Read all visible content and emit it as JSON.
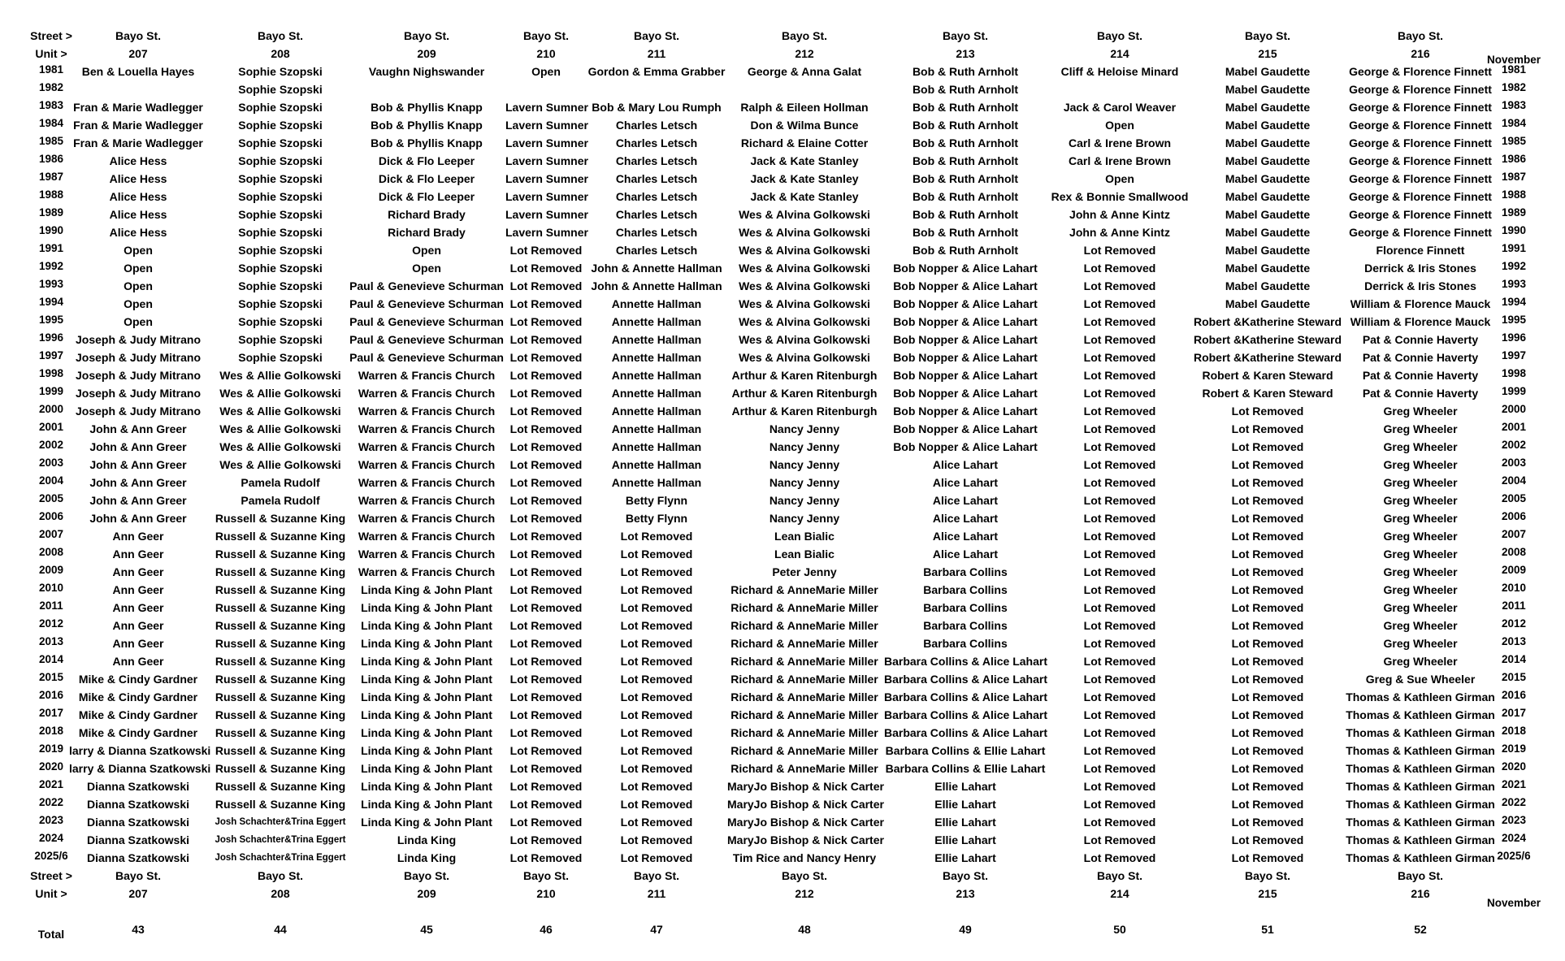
{
  "header": {
    "street_label": "Street >",
    "unit_label": "Unit >",
    "month_label": "November",
    "streets": [
      "Bayo St.",
      "Bayo St.",
      "Bayo St.",
      "Bayo St.",
      "Bayo St.",
      "Bayo St.",
      "Bayo St.",
      "Bayo St.",
      "Bayo St.",
      "Bayo St."
    ],
    "units": [
      "207",
      "208",
      "209",
      "210",
      "211",
      "212",
      "213",
      "214",
      "215",
      "216"
    ]
  },
  "rows": [
    {
      "year": "1981",
      "cells": [
        "Ben & Louella Hayes",
        "Sophie Szopski",
        "Vaughn Nighswander",
        "Open",
        "Gordon & Emma Grabber",
        "George & Anna Galat",
        "Bob & Ruth Arnholt",
        "Cliff & Heloise Minard",
        "Mabel Gaudette",
        "George & Florence Finnett"
      ]
    },
    {
      "year": "1982",
      "cells": [
        "",
        "Sophie Szopski",
        "",
        "",
        "",
        "",
        "Bob & Ruth Arnholt",
        "",
        "Mabel Gaudette",
        "George & Florence Finnett"
      ]
    },
    {
      "year": "1983",
      "cells": [
        "Fran & Marie Wadlegger",
        "Sophie Szopski",
        "Bob & Phyllis Knapp",
        "Lavern Sumner",
        "Bob & Mary Lou Rumph",
        "Ralph & Eileen Hollman",
        "Bob & Ruth Arnholt",
        "Jack & Carol Weaver",
        "Mabel Gaudette",
        "George & Florence Finnett"
      ]
    },
    {
      "year": "1984",
      "cells": [
        "Fran & Marie Wadlegger",
        "Sophie Szopski",
        "Bob & Phyllis Knapp",
        "Lavern Sumner",
        "Charles Letsch",
        "Don & Wilma Bunce",
        "Bob & Ruth Arnholt",
        "Open",
        "Mabel Gaudette",
        "George & Florence Finnett"
      ]
    },
    {
      "year": "1985",
      "cells": [
        "Fran & Marie Wadlegger",
        "Sophie Szopski",
        "Bob & Phyllis Knapp",
        "Lavern Sumner",
        "Charles Letsch",
        "Richard & Elaine Cotter",
        "Bob & Ruth Arnholt",
        "Carl & Irene Brown",
        "Mabel Gaudette",
        "George & Florence Finnett"
      ]
    },
    {
      "year": "1986",
      "cells": [
        "Alice Hess",
        "Sophie Szopski",
        "Dick & Flo Leeper",
        "Lavern Sumner",
        "Charles Letsch",
        "Jack & Kate Stanley",
        "Bob & Ruth Arnholt",
        "Carl & Irene Brown",
        "Mabel Gaudette",
        "George & Florence Finnett"
      ]
    },
    {
      "year": "1987",
      "cells": [
        "Alice Hess",
        "Sophie Szopski",
        "Dick & Flo Leeper",
        "Lavern Sumner",
        "Charles Letsch",
        "Jack & Kate Stanley",
        "Bob & Ruth Arnholt",
        "Open",
        "Mabel Gaudette",
        "George & Florence Finnett"
      ]
    },
    {
      "year": "1988",
      "cells": [
        "Alice Hess",
        "Sophie Szopski",
        "Dick & Flo Leeper",
        "Lavern Sumner",
        "Charles Letsch",
        "Jack & Kate Stanley",
        "Bob & Ruth Arnholt",
        "Rex & Bonnie Smallwood",
        "Mabel Gaudette",
        "George & Florence Finnett"
      ]
    },
    {
      "year": "1989",
      "cells": [
        "Alice Hess",
        "Sophie Szopski",
        "Richard Brady",
        "Lavern Sumner",
        "Charles Letsch",
        "Wes & Alvina Golkowski",
        "Bob & Ruth Arnholt",
        "John & Anne Kintz",
        "Mabel Gaudette",
        "George & Florence Finnett"
      ]
    },
    {
      "year": "1990",
      "cells": [
        "Alice Hess",
        "Sophie Szopski",
        "Richard Brady",
        "Lavern Sumner",
        "Charles Letsch",
        "Wes & Alvina Golkowski",
        "Bob & Ruth Arnholt",
        "John & Anne Kintz",
        "Mabel Gaudette",
        "George & Florence Finnett"
      ]
    },
    {
      "year": "1991",
      "cells": [
        "Open",
        "Sophie Szopski",
        "Open",
        "Lot Removed",
        "Charles Letsch",
        "Wes & Alvina Golkowski",
        "Bob & Ruth Arnholt",
        "Lot Removed",
        "Mabel Gaudette",
        "Florence Finnett"
      ]
    },
    {
      "year": "1992",
      "cells": [
        "Open",
        "Sophie Szopski",
        "Open",
        "Lot Removed",
        "John & Annette Hallman",
        "Wes & Alvina Golkowski",
        "Bob Nopper & Alice Lahart",
        "Lot Removed",
        "Mabel Gaudette",
        "Derrick & Iris Stones"
      ]
    },
    {
      "year": "1993",
      "cells": [
        "Open",
        "Sophie Szopski",
        "Paul & Genevieve Schurman",
        "Lot Removed",
        "John & Annette Hallman",
        "Wes & Alvina Golkowski",
        "Bob Nopper & Alice Lahart",
        "Lot Removed",
        "Mabel Gaudette",
        "Derrick & Iris Stones"
      ]
    },
    {
      "year": "1994",
      "cells": [
        "Open",
        "Sophie Szopski",
        "Paul & Genevieve Schurman",
        "Lot Removed",
        "Annette Hallman",
        "Wes & Alvina Golkowski",
        "Bob Nopper & Alice Lahart",
        "Lot Removed",
        "Mabel Gaudette",
        "William & Florence Mauck"
      ]
    },
    {
      "year": "1995",
      "cells": [
        "Open",
        "Sophie Szopski",
        "Paul & Genevieve Schurman",
        "Lot Removed",
        "Annette Hallman",
        "Wes & Alvina Golkowski",
        "Bob Nopper & Alice Lahart",
        "Lot Removed",
        "Robert &Katherine Steward",
        "William & Florence Mauck"
      ]
    },
    {
      "year": "1996",
      "cells": [
        "Joseph & Judy Mitrano",
        "Sophie Szopski",
        "Paul & Genevieve Schurman",
        "Lot Removed",
        "Annette Hallman",
        "Wes & Alvina Golkowski",
        "Bob Nopper & Alice Lahart",
        "Lot Removed",
        "Robert &Katherine Steward",
        "Pat & Connie Haverty"
      ]
    },
    {
      "year": "1997",
      "cells": [
        "Joseph & Judy Mitrano",
        "Sophie Szopski",
        "Paul & Genevieve Schurman",
        "Lot Removed",
        "Annette Hallman",
        "Wes & Alvina Golkowski",
        "Bob Nopper & Alice Lahart",
        "Lot Removed",
        "Robert &Katherine Steward",
        "Pat & Connie Haverty"
      ]
    },
    {
      "year": "1998",
      "cells": [
        "Joseph & Judy Mitrano",
        "Wes & Allie Golkowski",
        "Warren & Francis Church",
        "Lot Removed",
        "Annette Hallman",
        "Arthur & Karen Ritenburgh",
        "Bob Nopper & Alice Lahart",
        "Lot Removed",
        "Robert & Karen Steward",
        "Pat & Connie Haverty"
      ]
    },
    {
      "year": "1999",
      "cells": [
        "Joseph & Judy Mitrano",
        "Wes & Allie Golkowski",
        "Warren & Francis Church",
        "Lot Removed",
        "Annette Hallman",
        "Arthur & Karen Ritenburgh",
        "Bob Nopper & Alice Lahart",
        "Lot Removed",
        "Robert & Karen Steward",
        "Pat & Connie Haverty"
      ]
    },
    {
      "year": "2000",
      "cells": [
        "Joseph & Judy Mitrano",
        "Wes & Allie Golkowski",
        "Warren & Francis Church",
        "Lot Removed",
        "Annette Hallman",
        "Arthur & Karen Ritenburgh",
        "Bob Nopper & Alice Lahart",
        "Lot Removed",
        "Lot Removed",
        "Greg Wheeler"
      ]
    },
    {
      "year": "2001",
      "cells": [
        "John & Ann Greer",
        "Wes & Allie Golkowski",
        "Warren & Francis Church",
        "Lot Removed",
        "Annette Hallman",
        "Nancy Jenny",
        "Bob Nopper & Alice Lahart",
        "Lot Removed",
        "Lot Removed",
        "Greg Wheeler"
      ]
    },
    {
      "year": "2002",
      "cells": [
        "John & Ann Greer",
        "Wes & Allie Golkowski",
        "Warren & Francis Church",
        "Lot Removed",
        "Annette Hallman",
        "Nancy Jenny",
        "Bob Nopper & Alice Lahart",
        "Lot Removed",
        "Lot Removed",
        "Greg Wheeler"
      ]
    },
    {
      "year": "2003",
      "cells": [
        "John & Ann Greer",
        "Wes & Allie Golkowski",
        "Warren & Francis Church",
        "Lot Removed",
        "Annette Hallman",
        "Nancy Jenny",
        "Alice Lahart",
        "Lot Removed",
        "Lot Removed",
        "Greg Wheeler"
      ]
    },
    {
      "year": "2004",
      "cells": [
        "John & Ann Greer",
        "Pamela Rudolf",
        "Warren & Francis Church",
        "Lot Removed",
        "Annette Hallman",
        "Nancy Jenny",
        "Alice Lahart",
        "Lot Removed",
        "Lot Removed",
        "Greg Wheeler"
      ]
    },
    {
      "year": "2005",
      "cells": [
        "John & Ann Greer",
        "Pamela Rudolf",
        "Warren & Francis Church",
        "Lot Removed",
        "Betty Flynn",
        "Nancy Jenny",
        "Alice Lahart",
        "Lot Removed",
        "Lot Removed",
        "Greg Wheeler"
      ]
    },
    {
      "year": "2006",
      "cells": [
        "John & Ann Greer",
        "Russell & Suzanne King",
        "Warren & Francis Church",
        "Lot Removed",
        "Betty Flynn",
        "Nancy Jenny",
        "Alice Lahart",
        "Lot Removed",
        "Lot Removed",
        "Greg Wheeler"
      ]
    },
    {
      "year": "2007",
      "cells": [
        "Ann Geer",
        "Russell & Suzanne King",
        "Warren & Francis Church",
        "Lot Removed",
        "Lot Removed",
        "Lean Bialic",
        "Alice Lahart",
        "Lot Removed",
        "Lot Removed",
        "Greg Wheeler"
      ]
    },
    {
      "year": "2008",
      "cells": [
        "Ann Geer",
        "Russell & Suzanne King",
        "Warren & Francis Church",
        "Lot Removed",
        "Lot Removed",
        "Lean Bialic",
        "Alice Lahart",
        "Lot Removed",
        "Lot Removed",
        "Greg Wheeler"
      ]
    },
    {
      "year": "2009",
      "cells": [
        "Ann Geer",
        "Russell & Suzanne King",
        "Warren & Francis Church",
        "Lot Removed",
        "Lot Removed",
        "Peter Jenny",
        "Barbara Collins",
        "Lot Removed",
        "Lot Removed",
        "Greg Wheeler"
      ]
    },
    {
      "year": "2010",
      "cells": [
        "Ann Geer",
        "Russell & Suzanne King",
        "Linda King & John Plant",
        "Lot Removed",
        "Lot Removed",
        "Richard & AnneMarie Miller",
        "Barbara Collins",
        "Lot Removed",
        "Lot Removed",
        "Greg Wheeler"
      ]
    },
    {
      "year": "2011",
      "cells": [
        "Ann Geer",
        "Russell & Suzanne King",
        "Linda King & John Plant",
        "Lot Removed",
        "Lot Removed",
        "Richard & AnneMarie Miller",
        "Barbara Collins",
        "Lot Removed",
        "Lot Removed",
        "Greg Wheeler"
      ]
    },
    {
      "year": "2012",
      "cells": [
        "Ann Geer",
        "Russell & Suzanne King",
        "Linda King & John Plant",
        "Lot Removed",
        "Lot Removed",
        "Richard & AnneMarie Miller",
        "Barbara Collins",
        "Lot Removed",
        "Lot Removed",
        "Greg Wheeler"
      ]
    },
    {
      "year": "2013",
      "cells": [
        "Ann Geer",
        "Russell & Suzanne King",
        "Linda King & John Plant",
        "Lot Removed",
        "Lot Removed",
        "Richard & AnneMarie Miller",
        "Barbara Collins",
        "Lot Removed",
        "Lot Removed",
        "Greg Wheeler"
      ]
    },
    {
      "year": "2014",
      "cells": [
        "Ann Geer",
        "Russell & Suzanne King",
        "Linda King & John Plant",
        "Lot Removed",
        "Lot Removed",
        "Richard & AnneMarie Miller",
        "Barbara Collins & Alice Lahart",
        "Lot Removed",
        "Lot Removed",
        "Greg Wheeler"
      ]
    },
    {
      "year": "2015",
      "cells": [
        "Mike & Cindy Gardner",
        "Russell & Suzanne King",
        "Linda King & John Plant",
        "Lot Removed",
        "Lot Removed",
        "Richard & AnneMarie Miller",
        "Barbara Collins & Alice Lahart",
        "Lot Removed",
        "Lot Removed",
        "Greg & Sue Wheeler"
      ]
    },
    {
      "year": "2016",
      "cells": [
        "Mike & Cindy Gardner",
        "Russell & Suzanne King",
        "Linda King & John Plant",
        "Lot Removed",
        "Lot Removed",
        "Richard & AnneMarie Miller",
        "Barbara Collins & Alice Lahart",
        "Lot Removed",
        "Lot Removed",
        "Thomas & Kathleen Girman"
      ]
    },
    {
      "year": "2017",
      "cells": [
        "Mike & Cindy Gardner",
        "Russell & Suzanne King",
        "Linda King & John Plant",
        "Lot Removed",
        "Lot Removed",
        "Richard & AnneMarie Miller",
        "Barbara Collins & Alice Lahart",
        "Lot Removed",
        "Lot Removed",
        "Thomas & Kathleen Girman"
      ]
    },
    {
      "year": "2018",
      "cells": [
        "Mike & Cindy Gardner",
        "Russell & Suzanne King",
        "Linda King & John Plant",
        "Lot Removed",
        "Lot Removed",
        "Richard & AnneMarie Miller",
        "Barbara Collins & Alice Lahart",
        "Lot Removed",
        "Lot Removed",
        "Thomas & Kathleen Girman"
      ]
    },
    {
      "year": "2019",
      "cells": [
        "larry & Dianna Szatkowski",
        "Russell & Suzanne King",
        "Linda King & John Plant",
        "Lot Removed",
        "Lot Removed",
        "Richard & AnneMarie Miller",
        "Barbara Collins & Ellie Lahart",
        "Lot Removed",
        "Lot Removed",
        "Thomas & Kathleen Girman"
      ]
    },
    {
      "year": "2020",
      "cells": [
        "larry & Dianna Szatkowski",
        "Russell & Suzanne King",
        "Linda King & John Plant",
        "Lot Removed",
        "Lot Removed",
        "Richard & AnneMarie Miller",
        "Barbara Collins & Ellie Lahart",
        "Lot Removed",
        "Lot Removed",
        "Thomas & Kathleen Girman"
      ]
    },
    {
      "year": "2021",
      "cells": [
        "Dianna Szatkowski",
        "Russell & Suzanne King",
        "Linda King & John Plant",
        "Lot Removed",
        "Lot Removed",
        "MaryJo Bishop & Nick Carter",
        "Ellie Lahart",
        "Lot Removed",
        "Lot Removed",
        "Thomas & Kathleen Girman"
      ]
    },
    {
      "year": "2022",
      "cells": [
        "Dianna Szatkowski",
        "Russell & Suzanne King",
        "Linda King & John Plant",
        "Lot Removed",
        "Lot Removed",
        "MaryJo Bishop & Nick Carter",
        "Ellie Lahart",
        "Lot Removed",
        "Lot Removed",
        "Thomas & Kathleen Girman"
      ]
    },
    {
      "year": "2023",
      "cells": [
        "Dianna Szatkowski",
        "Josh Schachter&Trina Eggert",
        "Linda King & John Plant",
        "Lot Removed",
        "Lot Removed",
        "MaryJo Bishop & Nick Carter",
        "Ellie Lahart",
        "Lot Removed",
        "Lot Removed",
        "Thomas & Kathleen Girman"
      ]
    },
    {
      "year": "2024",
      "cells": [
        "Dianna Szatkowski",
        "Josh Schachter&Trina Eggert",
        "Linda King",
        "Lot Removed",
        "Lot Removed",
        "MaryJo Bishop & Nick Carter",
        "Ellie Lahart",
        "Lot Removed",
        "Lot Removed",
        "Thomas & Kathleen Girman"
      ]
    },
    {
      "year": "2025/6",
      "cells": [
        "Dianna Szatkowski",
        "Josh Schachter&Trina Eggert",
        "Linda King",
        "Lot Removed",
        "Lot Removed",
        "Tim Rice and Nancy Henry",
        "Ellie Lahart",
        "Lot Removed",
        "Lot Removed",
        "Thomas & Kathleen Girman"
      ]
    }
  ],
  "footer": {
    "street_label": "Street >",
    "unit_label": "Unit >",
    "month_label": "November",
    "total_label": "Total",
    "totals": [
      "43",
      "44",
      "45",
      "46",
      "47",
      "48",
      "49",
      "50",
      "51",
      "52"
    ]
  }
}
